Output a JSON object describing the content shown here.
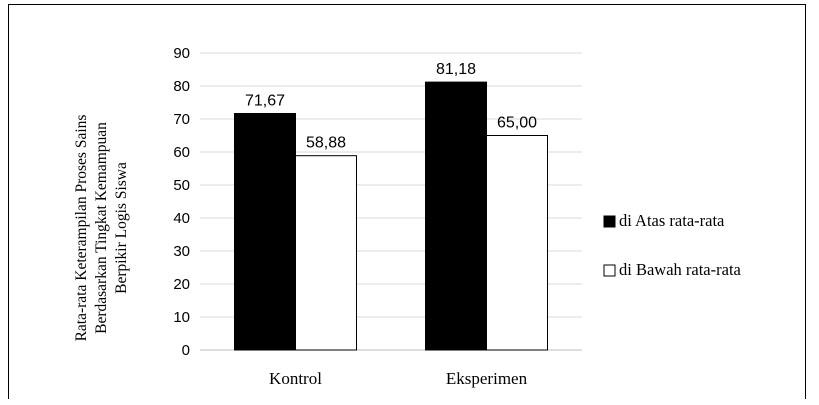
{
  "chart_data": {
    "type": "bar",
    "categories": [
      "Kontrol",
      "Eksperimen"
    ],
    "series": [
      {
        "name": "di Atas rata-rata",
        "values": [
          71.67,
          81.18
        ],
        "labels": [
          "71,67",
          "81,18"
        ],
        "color": "#000000"
      },
      {
        "name": "di Bawah rata-rata",
        "values": [
          58.88,
          65.0
        ],
        "labels": [
          "58,88",
          "65,00"
        ],
        "color": "#ffffff"
      }
    ],
    "ylabel_lines": [
      "Rata-rata  Keterampilan  Proses Sains",
      "Berdasarkan  Tingkat  Kemampuan",
      "Berpikir  Logis  Siswa"
    ],
    "ylim": [
      0,
      90
    ],
    "yticks": [
      0,
      10,
      20,
      30,
      40,
      50,
      60,
      70,
      80,
      90
    ],
    "grid": true,
    "legend_position": "right"
  }
}
